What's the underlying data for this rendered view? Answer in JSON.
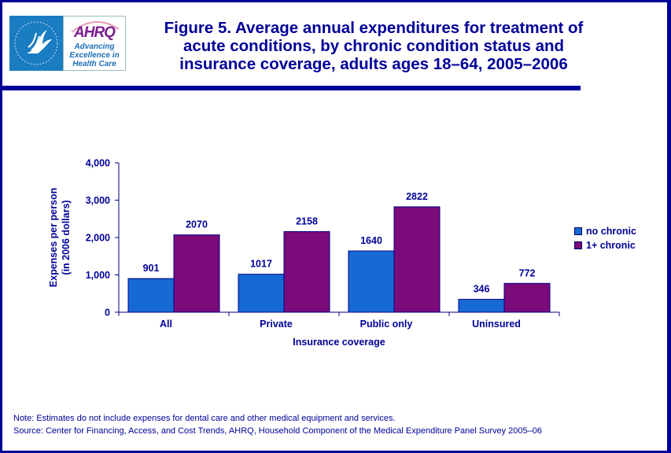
{
  "header": {
    "logo_left_name": "HHS eagle logo",
    "logo_right_name": "AHRQ",
    "logo_tagline": [
      "Advancing",
      "Excellence in",
      "Health Care"
    ],
    "title_lines": [
      "Figure 5. Average annual expenditures for treatment of",
      "acute conditions, by chronic condition status and",
      "insurance coverage, adults ages 18–64, 2005–2006"
    ]
  },
  "footer": {
    "note": "Note:  Estimates do not include expenses for dental care and other medical equipment and services.",
    "source": "Source: Center for Financing, Access, and Cost Trends, AHRQ, Household Component of the Medical Expenditure Panel Survey 2005–06"
  },
  "colors": {
    "frame": "#000099",
    "text": "#000099",
    "no_chronic": "#1769d4",
    "one_plus_chronic": "#7b0a7b"
  },
  "chart_data": {
    "type": "bar",
    "title": "Figure 5. Average annual expenditures for treatment of acute conditions, by chronic condition status and insurance coverage, adults ages 18–64, 2005–2006",
    "xlabel": "Insurance coverage",
    "ylabel_lines": [
      "Expenses per person",
      "(in 2006 dollars)"
    ],
    "categories": [
      "All",
      "Private",
      "Public only",
      "Uninsured"
    ],
    "series": [
      {
        "name": "no chronic",
        "values": [
          901,
          1017,
          1640,
          346
        ]
      },
      {
        "name": "1+ chronic",
        "values": [
          2070,
          2158,
          2822,
          772
        ]
      }
    ],
    "data_labels": [
      [
        "901",
        "1017",
        "1640",
        "346"
      ],
      [
        "2070",
        "2158",
        "2822",
        "772"
      ]
    ],
    "ylim": [
      0,
      4000
    ],
    "yticks": [
      0,
      1000,
      2000,
      3000,
      4000
    ],
    "ytick_labels": [
      "0",
      "1,000",
      "2,000",
      "3,000",
      "4,000"
    ],
    "grid": false,
    "legend": "right"
  }
}
